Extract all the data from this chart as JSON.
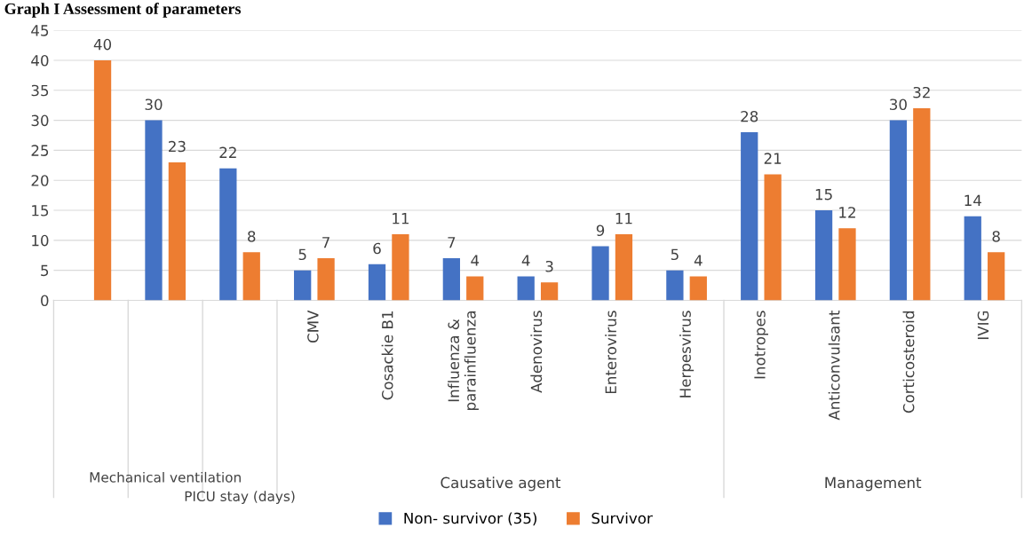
{
  "chart_data": {
    "type": "bar",
    "title": "Graph I Assessment of parameters",
    "categories": [
      null,
      null,
      null,
      "CMV",
      "Cosackie B1",
      "Influenza & parainfluenza",
      "Adenovirus",
      "Enterovirus",
      "Herpesvirus",
      "Inotropes",
      "Anticonvulsant",
      "Corticosteroid",
      "IVIG"
    ],
    "series": [
      {
        "name": "Non- survivor (35)",
        "color": "#4472c4",
        "values": [
          null,
          30,
          22,
          5,
          6,
          7,
          4,
          9,
          5,
          28,
          15,
          30,
          14
        ]
      },
      {
        "name": "Survivor",
        "color": "#ed7d31",
        "values": [
          40,
          23,
          8,
          7,
          11,
          4,
          3,
          11,
          4,
          21,
          12,
          32,
          8
        ]
      }
    ],
    "annotations": [
      "Mechanical ventilation",
      "PICU stay (days)",
      "Causative agent",
      "Management"
    ],
    "ylim": [
      0,
      45
    ],
    "yticks": [
      0,
      5,
      10,
      15,
      20,
      25,
      30,
      35,
      40,
      45
    ],
    "grid": "y",
    "legend": "bottom",
    "data_labels": true
  }
}
